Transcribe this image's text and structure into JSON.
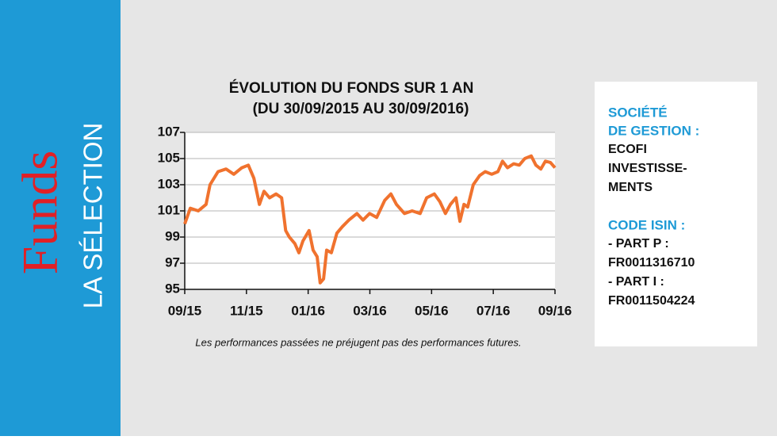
{
  "sidebar": {
    "brand": "Funds",
    "subtitle": "LA SÉLECTION"
  },
  "chart_data": {
    "type": "line",
    "title": "ÉVOLUTION DU FONDS SUR 1 AN",
    "subtitle": "(DU 30/09/2015 AU 30/09/2016)",
    "note": "Les performances passées ne préjugent pas des performances futures.",
    "xlim": [
      0,
      12
    ],
    "xticks": [
      {
        "value": 0,
        "label": "09/15"
      },
      {
        "value": 2,
        "label": "11/15"
      },
      {
        "value": 4,
        "label": "01/16"
      },
      {
        "value": 6,
        "label": "03/16"
      },
      {
        "value": 8,
        "label": "05/16"
      },
      {
        "value": 10,
        "label": "07/16"
      },
      {
        "value": 12,
        "label": "09/16"
      }
    ],
    "ylim": [
      95,
      107
    ],
    "yticks": [
      95,
      97,
      99,
      101,
      103,
      105,
      107
    ],
    "grid": true,
    "series": [
      {
        "color": "#f0722e",
        "x": [
          0,
          0.18,
          0.44,
          0.69,
          0.82,
          1.08,
          1.34,
          1.59,
          1.85,
          2.06,
          2.24,
          2.42,
          2.57,
          2.75,
          2.96,
          3.14,
          3.27,
          3.39,
          3.57,
          3.7,
          3.83,
          4.03,
          4.16,
          4.29,
          4.39,
          4.5,
          4.6,
          4.75,
          4.93,
          5.11,
          5.32,
          5.58,
          5.78,
          5.99,
          6.22,
          6.48,
          6.68,
          6.86,
          7.12,
          7.37,
          7.63,
          7.84,
          8.09,
          8.27,
          8.45,
          8.61,
          8.79,
          8.92,
          9.05,
          9.17,
          9.35,
          9.56,
          9.74,
          9.95,
          10.15,
          10.3,
          10.46,
          10.66,
          10.84,
          11.02,
          11.23,
          11.38,
          11.54,
          11.69,
          11.85,
          12
        ],
        "values": [
          100,
          101.2,
          101.0,
          101.5,
          103,
          104,
          104.2,
          103.8,
          104.3,
          104.5,
          103.5,
          101.5,
          102.5,
          102.0,
          102.3,
          102,
          99.5,
          99,
          98.5,
          97.8,
          98.7,
          99.5,
          98,
          97.5,
          95.5,
          95.8,
          98,
          97.8,
          99.3,
          99.8,
          100.3,
          100.8,
          100.3,
          100.8,
          100.5,
          101.8,
          102.3,
          101.5,
          100.8,
          101.0,
          100.8,
          102,
          102.3,
          101.7,
          100.8,
          101.5,
          102,
          100.2,
          101.5,
          101.3,
          103,
          103.7,
          104,
          103.8,
          104,
          104.8,
          104.3,
          104.6,
          104.5,
          105,
          105.2,
          104.5,
          104.2,
          104.8,
          104.7,
          104.3
        ]
      }
    ]
  },
  "info": {
    "sections": [
      {
        "heading": [
          "SOCIÉTÉ",
          "DE GESTION :"
        ],
        "lines": [
          "ECOFI",
          "INVESTISSE-",
          "MENTS"
        ]
      },
      {
        "heading": [
          "CODE ISIN :"
        ],
        "lines": [
          "- PART P :",
          "FR0011316710",
          "- PART I :",
          "FR0011504224"
        ]
      }
    ]
  }
}
